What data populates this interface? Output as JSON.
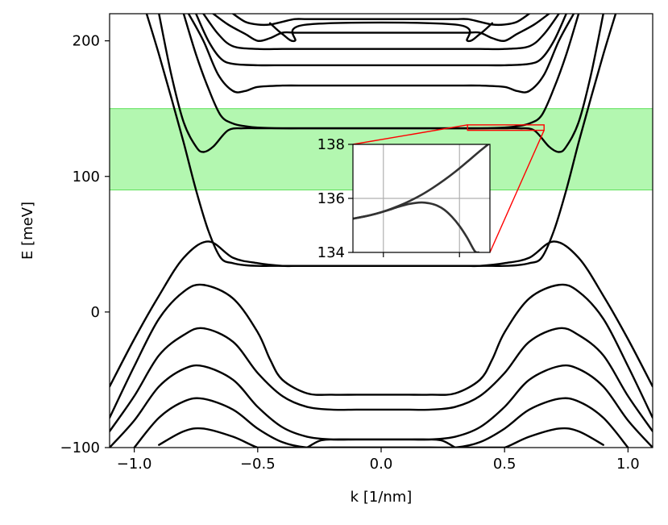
{
  "chart_data": {
    "type": "line",
    "title": "",
    "xlabel": "k [1/nm]",
    "ylabel": "E [meV]",
    "xlim": [
      -1.1,
      1.1
    ],
    "ylim": [
      -100,
      220
    ],
    "xticks": [
      -1.0,
      -0.5,
      0.0,
      0.5,
      1.0
    ],
    "xtick_labels": [
      "−1.0",
      "−0.5",
      "0.0",
      "0.5",
      "1.0"
    ],
    "yticks": [
      -100,
      0,
      100,
      200
    ],
    "ytick_labels": [
      "−100",
      "0",
      "100",
      "200"
    ],
    "grid": false,
    "legend": "none",
    "highlight_band": {
      "y_range": [
        90,
        150
      ],
      "color": "#b3f7b0"
    },
    "line_color": "#000000",
    "series": [
      {
        "x": [
          -1.1,
          -1.0,
          -0.9,
          -0.8,
          -0.7,
          -0.6,
          -0.5,
          -0.4,
          -0.35,
          -0.3,
          -0.2,
          -0.1,
          0.0,
          0.1,
          0.2,
          0.3,
          0.35,
          0.4,
          0.5,
          0.6,
          0.7,
          0.8,
          0.9,
          1.0,
          1.1
        ],
        "y": [
          -55,
          -20,
          12,
          40,
          52,
          40,
          36,
          34,
          34,
          34,
          34,
          34,
          34,
          34,
          34,
          34,
          34,
          34,
          36,
          40,
          52,
          40,
          12,
          -20,
          -55
        ]
      },
      {
        "x": [
          -1.1,
          -1.0,
          -0.9,
          -0.8,
          -0.72,
          -0.6,
          -0.5,
          -0.45,
          -0.4,
          -0.3,
          -0.2,
          -0.1,
          0.0,
          0.1,
          0.2,
          0.3,
          0.4,
          0.45,
          0.5,
          0.6,
          0.72,
          0.8,
          0.9,
          1.0,
          1.1
        ],
        "y": [
          -78,
          -40,
          -5,
          15,
          20,
          10,
          -15,
          -35,
          -50,
          -60,
          -61,
          -61,
          -61,
          -61,
          -61,
          -60,
          -50,
          -35,
          -15,
          10,
          20,
          15,
          -5,
          -40,
          -78
        ]
      },
      {
        "x": [
          -1.1,
          -1.0,
          -0.9,
          -0.8,
          -0.72,
          -0.6,
          -0.5,
          -0.4,
          -0.3,
          -0.2,
          -0.1,
          0.0,
          0.1,
          0.2,
          0.3,
          0.4,
          0.5,
          0.6,
          0.72,
          0.8,
          0.9,
          1.0,
          1.1
        ],
        "y": [
          -88,
          -62,
          -32,
          -17,
          -12,
          -22,
          -45,
          -62,
          -70,
          -72,
          -72,
          -72,
          -72,
          -72,
          -70,
          -62,
          -45,
          -22,
          -12,
          -17,
          -32,
          -62,
          -88
        ]
      },
      {
        "x": [
          -1.1,
          -1.0,
          -0.9,
          -0.8,
          -0.72,
          -0.6,
          -0.5,
          -0.4,
          -0.3,
          -0.2,
          -0.1,
          0.0,
          0.1,
          0.2,
          0.3,
          0.4,
          0.5,
          0.6,
          0.72,
          0.8,
          0.9,
          1.0,
          1.1
        ],
        "y": [
          -100,
          -80,
          -55,
          -42,
          -40,
          -50,
          -70,
          -85,
          -92,
          -94,
          -94,
          -94,
          -94,
          -94,
          -92,
          -85,
          -70,
          -50,
          -40,
          -42,
          -55,
          -80,
          -100
        ]
      },
      {
        "x": [
          -1.0,
          -0.9,
          -0.8,
          -0.72,
          -0.6,
          -0.5,
          -0.4,
          -0.3,
          -0.2,
          -0.1,
          0.0,
          0.1,
          0.2,
          0.3,
          0.4,
          0.5,
          0.6,
          0.72,
          0.8,
          0.9,
          1.0
        ],
        "y": [
          -100,
          -78,
          -66,
          -64,
          -72,
          -86,
          -96,
          -100,
          -100,
          -100,
          -100,
          -100,
          -100,
          -100,
          -96,
          -86,
          -72,
          -64,
          -66,
          -78,
          -100
        ]
      },
      {
        "x": [
          -0.9,
          -0.8,
          -0.72,
          -0.6,
          -0.5,
          -0.45,
          -0.45,
          0.45,
          0.45,
          0.5,
          0.6,
          0.72,
          0.8,
          0.9
        ],
        "y": [
          -98,
          -88,
          -86,
          -92,
          -100,
          -100,
          -100,
          -100,
          -100,
          -100,
          -92,
          -86,
          -88,
          -98
        ]
      },
      {
        "x": [
          -0.3,
          -0.25,
          -0.2,
          -0.1,
          0.0,
          0.1,
          0.2,
          0.25,
          0.3
        ],
        "y": [
          -100,
          -95,
          -94,
          -94,
          -94,
          -94,
          -94,
          -95,
          -100
        ]
      },
      {
        "x": [
          -0.95,
          -0.9,
          -0.85,
          -0.8,
          -0.75,
          -0.7,
          -0.65,
          -0.6,
          -0.55,
          -0.5,
          -0.45,
          -0.4,
          -0.3,
          -0.2,
          -0.1,
          0.0,
          0.1,
          0.2,
          0.3,
          0.4,
          0.45,
          0.5,
          0.55,
          0.6,
          0.65,
          0.7,
          0.75,
          0.8,
          0.85,
          0.9,
          0.95
        ],
        "y": [
          220,
          190,
          158,
          125,
          90,
          60,
          40,
          36,
          34.5,
          34,
          34,
          34,
          34,
          34,
          34,
          34,
          34,
          34,
          34,
          34,
          34,
          34,
          34.5,
          36,
          40,
          60,
          90,
          125,
          158,
          190,
          220
        ]
      },
      {
        "x": [
          -0.9,
          -0.85,
          -0.8,
          -0.75,
          -0.72,
          -0.68,
          -0.62,
          -0.56,
          -0.5,
          -0.4,
          -0.3,
          -0.2,
          -0.1,
          0.0,
          0.1,
          0.2,
          0.3,
          0.4,
          0.5,
          0.56,
          0.62,
          0.68,
          0.72,
          0.75,
          0.8,
          0.85,
          0.9
        ],
        "y": [
          220,
          175,
          140,
          122,
          118,
          122,
          134,
          135.5,
          135.5,
          135.5,
          135.5,
          135.5,
          135.5,
          135.5,
          135.5,
          135.5,
          135.5,
          135.5,
          135.5,
          135.5,
          134,
          122,
          118,
          122,
          140,
          175,
          220
        ]
      },
      {
        "x": [
          -0.8,
          -0.75,
          -0.7,
          -0.65,
          -0.6,
          -0.55,
          -0.5,
          -0.4,
          -0.3,
          -0.2,
          -0.1,
          0.0,
          0.1,
          0.2,
          0.3,
          0.4,
          0.5,
          0.55,
          0.6,
          0.65,
          0.7,
          0.75,
          0.8
        ],
        "y": [
          220,
          190,
          165,
          145,
          139,
          137,
          136,
          135.5,
          135.5,
          135.5,
          135.5,
          135.5,
          135.5,
          135.5,
          135.5,
          135.5,
          136,
          137,
          139,
          145,
          165,
          190,
          220
        ]
      },
      {
        "x": [
          -0.78,
          -0.72,
          -0.66,
          -0.6,
          -0.55,
          -0.5,
          -0.4,
          -0.3,
          -0.2,
          -0.1,
          0.0,
          0.1,
          0.2,
          0.3,
          0.4,
          0.5,
          0.55,
          0.6,
          0.66,
          0.72,
          0.78
        ],
        "y": [
          220,
          200,
          175,
          163,
          163,
          166,
          167,
          167,
          167,
          167,
          167,
          167,
          167,
          167,
          167,
          166,
          163,
          163,
          175,
          200,
          220
        ]
      },
      {
        "x": [
          -0.75,
          -0.7,
          -0.65,
          -0.6,
          -0.5,
          -0.4,
          -0.3,
          -0.2,
          -0.1,
          0.0,
          0.1,
          0.2,
          0.3,
          0.4,
          0.5,
          0.6,
          0.65,
          0.7,
          0.75
        ],
        "y": [
          220,
          200,
          187,
          183,
          182,
          182,
          182,
          182,
          182,
          182,
          182,
          182,
          182,
          182,
          182,
          183,
          187,
          200,
          220
        ]
      },
      {
        "x": [
          -0.72,
          -0.66,
          -0.6,
          -0.5,
          -0.4,
          -0.3,
          -0.2,
          -0.1,
          0.0,
          0.1,
          0.2,
          0.3,
          0.4,
          0.5,
          0.6,
          0.66,
          0.72
        ],
        "y": [
          220,
          205,
          196,
          194,
          194,
          194,
          194,
          194,
          194,
          194,
          194,
          194,
          194,
          194,
          196,
          205,
          220
        ]
      },
      {
        "x": [
          -0.68,
          -0.62,
          -0.55,
          -0.5,
          -0.45,
          -0.4,
          -0.35,
          -0.3,
          -0.2,
          -0.1,
          0.0,
          0.1,
          0.2,
          0.3,
          0.35,
          0.4,
          0.45,
          0.5,
          0.55,
          0.62,
          0.68
        ],
        "y": [
          220,
          212,
          205,
          200,
          202,
          206,
          206,
          206,
          206,
          206,
          206,
          206,
          206,
          206,
          206,
          206,
          202,
          200,
          205,
          212,
          220
        ]
      },
      {
        "x": [
          -0.6,
          -0.55,
          -0.5,
          -0.45,
          -0.4,
          -0.35,
          -0.3,
          -0.2,
          -0.1,
          0.0,
          0.1,
          0.2,
          0.3,
          0.35,
          0.4,
          0.45,
          0.5,
          0.55,
          0.6
        ],
        "y": [
          220,
          214,
          212,
          212,
          214,
          216,
          216,
          216,
          216,
          216,
          216,
          216,
          216,
          216,
          214,
          212,
          212,
          214,
          220
        ]
      },
      {
        "x": [
          -0.45,
          -0.4,
          -0.35,
          -0.3,
          0.3,
          0.35,
          0.4,
          0.45
        ],
        "y": [
          213,
          205,
          200,
          212,
          212,
          200,
          205,
          213
        ]
      }
    ],
    "zoom_box": {
      "x_range": [
        0.35,
        0.66
      ],
      "y_range": [
        134,
        138
      ],
      "color": "#ff0000"
    },
    "inset": {
      "type": "line",
      "xlim": [
        0.32,
        0.68
      ],
      "ylim": [
        134,
        138
      ],
      "yticks": [
        134,
        136,
        138
      ],
      "ytick_labels": [
        "134",
        "136",
        "138"
      ],
      "xticks": [
        0.4,
        0.6
      ],
      "grid": true,
      "line_color": "#333333",
      "series": [
        {
          "x": [
            0.32,
            0.35,
            0.38,
            0.41,
            0.44,
            0.47,
            0.5,
            0.53,
            0.56,
            0.59,
            0.62,
            0.65,
            0.68
          ],
          "y": [
            135.25,
            135.33,
            135.43,
            135.56,
            135.72,
            135.91,
            136.13,
            136.39,
            136.68,
            137.0,
            137.35,
            137.71,
            138.05
          ]
        },
        {
          "x": [
            0.32,
            0.35,
            0.38,
            0.41,
            0.44,
            0.47,
            0.5,
            0.52,
            0.54,
            0.56,
            0.58,
            0.6,
            0.62,
            0.64,
            0.65
          ],
          "y": [
            135.25,
            135.33,
            135.43,
            135.55,
            135.69,
            135.8,
            135.85,
            135.82,
            135.74,
            135.58,
            135.32,
            134.98,
            134.55,
            134.05,
            134.0
          ]
        }
      ]
    }
  }
}
